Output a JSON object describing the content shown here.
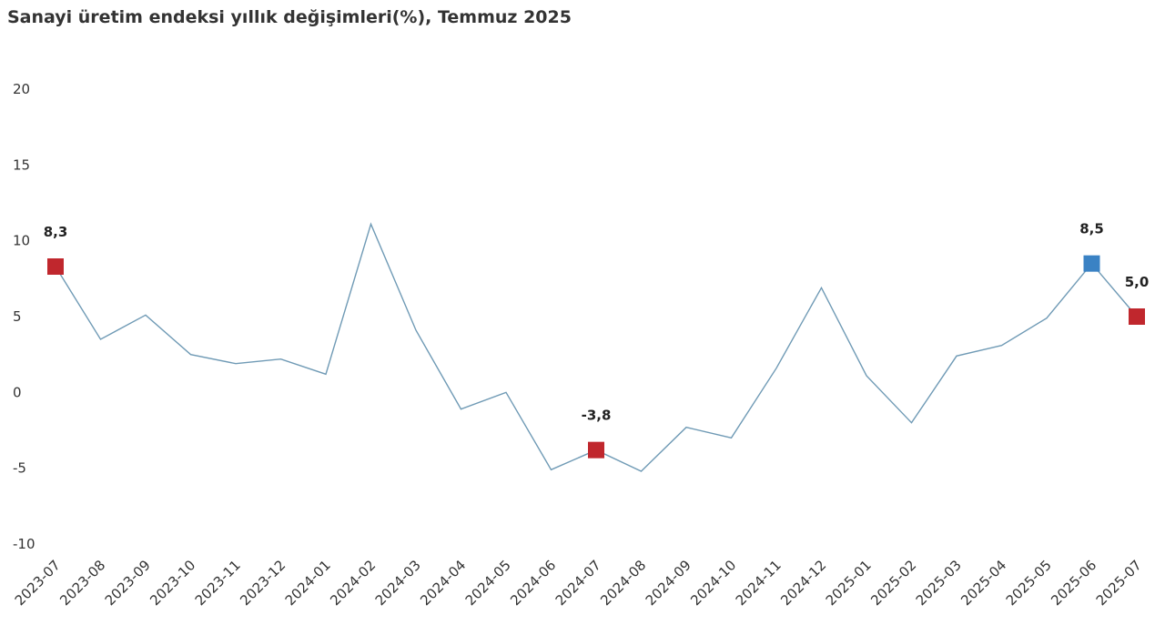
{
  "chart_data": {
    "type": "line",
    "title": "Sanayi üretim endeksi yıllık değişimleri(%), Temmuz 2025",
    "xlabel": "",
    "ylabel": "",
    "ylim": [
      -10,
      20
    ],
    "yticks": [
      "20",
      "15",
      "10",
      "5",
      "0",
      "-5",
      "-10"
    ],
    "ytick_values": [
      20,
      15,
      10,
      5,
      0,
      -5,
      -10
    ],
    "grid": false,
    "categories": [
      "2023-07",
      "2023-08",
      "2023-09",
      "2023-10",
      "2023-11",
      "2023-12",
      "2024-01",
      "2024-02",
      "2024-03",
      "2024-04",
      "2024-05",
      "2024-06",
      "2024-07",
      "2024-08",
      "2024-09",
      "2024-10",
      "2024-11",
      "2024-12",
      "2025-01",
      "2025-02",
      "2025-03",
      "2025-04",
      "2025-05",
      "2025-06",
      "2025-07"
    ],
    "series": [
      {
        "values": [
          8.3,
          3.5,
          5.1,
          2.5,
          1.9,
          2.2,
          1.2,
          11.1,
          4.1,
          -1.1,
          0.0,
          -5.1,
          -3.8,
          -5.2,
          -2.3,
          -3.0,
          1.6,
          6.9,
          1.1,
          -2.0,
          2.4,
          3.1,
          4.9,
          8.5,
          5.0
        ],
        "color": "#6f9ab5"
      }
    ],
    "markers": [
      {
        "index": 0,
        "label": "8,3",
        "color": "#c0272d"
      },
      {
        "index": 12,
        "label": "-3,8",
        "color": "#c0272d"
      },
      {
        "index": 23,
        "label": "8,5",
        "color": "#3a82c4"
      },
      {
        "index": 24,
        "label": "5,0",
        "color": "#c0272d"
      }
    ]
  }
}
